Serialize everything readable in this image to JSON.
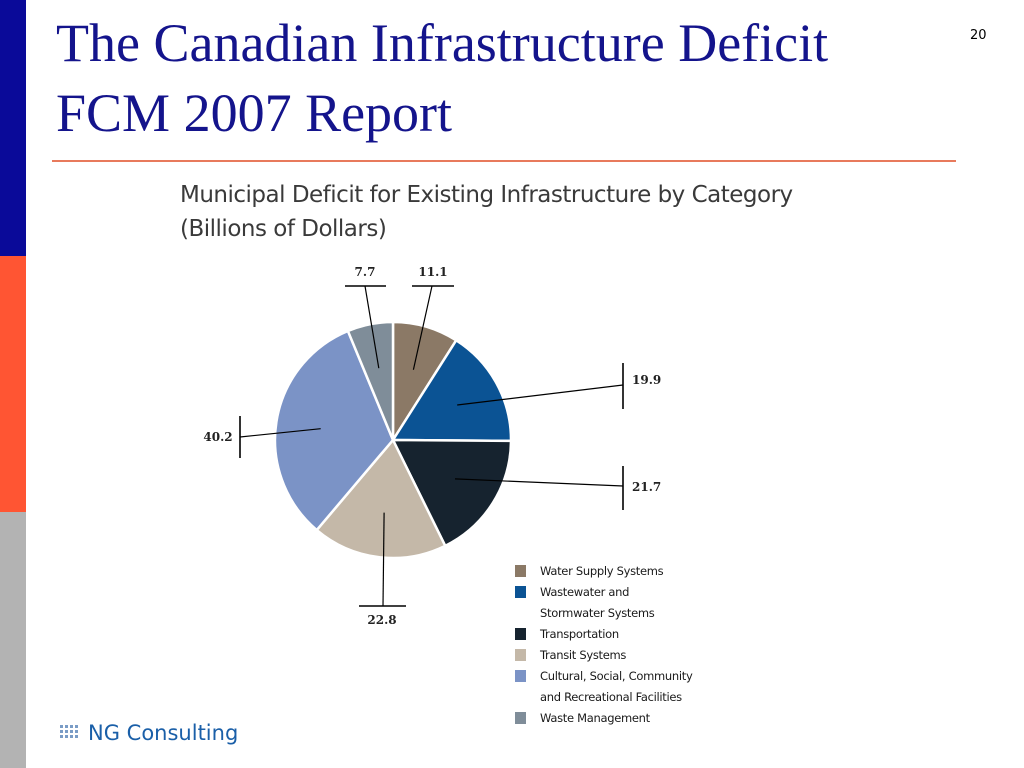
{
  "slide": {
    "title_line1": "The Canadian Infrastructure Deficit",
    "title_line2": "FCM 2007 Report",
    "page_number": "20",
    "logo_text": "NG Consulting"
  },
  "colors": {
    "title": "#14148c",
    "bar_top": "#0a0a99",
    "bar_middle": "#ff5533",
    "bar_bottom": "#b3b3b3",
    "rule": "#e87a5c"
  },
  "chart_data": {
    "type": "pie",
    "title_line1": "Municipal Deficit for Existing Infrastructure by Category",
    "title_line2": "(Billions of Dollars)",
    "start_angle_deg": 0,
    "direction": "clockwise",
    "slices": [
      {
        "label": "Water Supply Systems",
        "value": 11.1,
        "value_label": "11.1",
        "color": "#8b7966"
      },
      {
        "label": "Wastewater and Stormwater Systems",
        "value": 19.9,
        "value_label": "19.9",
        "color": "#0b5394"
      },
      {
        "label": "Transportation",
        "value": 21.7,
        "value_label": "21.7",
        "color": "#16232f"
      },
      {
        "label": "Transit Systems",
        "value": 22.8,
        "value_label": "22.8",
        "color": "#c4b8a8"
      },
      {
        "label": "Cultural, Social, Community and Recreational Facilities",
        "value": 40.2,
        "value_label": "40.2",
        "color": "#7b93c6"
      },
      {
        "label": "Waste Management",
        "value": 7.7,
        "value_label": "7.7",
        "color": "#7f8d99"
      }
    ],
    "legend": {
      "placement": "bottom-right",
      "entries": [
        {
          "lines": [
            "Water Supply Systems"
          ],
          "color": "#8b7966"
        },
        {
          "lines": [
            "Wastewater and",
            "Stormwater Systems"
          ],
          "color": "#0b5394"
        },
        {
          "lines": [
            "Transportation"
          ],
          "color": "#16232f"
        },
        {
          "lines": [
            "Transit Systems"
          ],
          "color": "#c4b8a8"
        },
        {
          "lines": [
            "Cultural, Social, Community",
            "and Recreational Facilities"
          ],
          "color": "#7b93c6"
        },
        {
          "lines": [
            "Waste Management"
          ],
          "color": "#7f8d99"
        }
      ]
    }
  }
}
